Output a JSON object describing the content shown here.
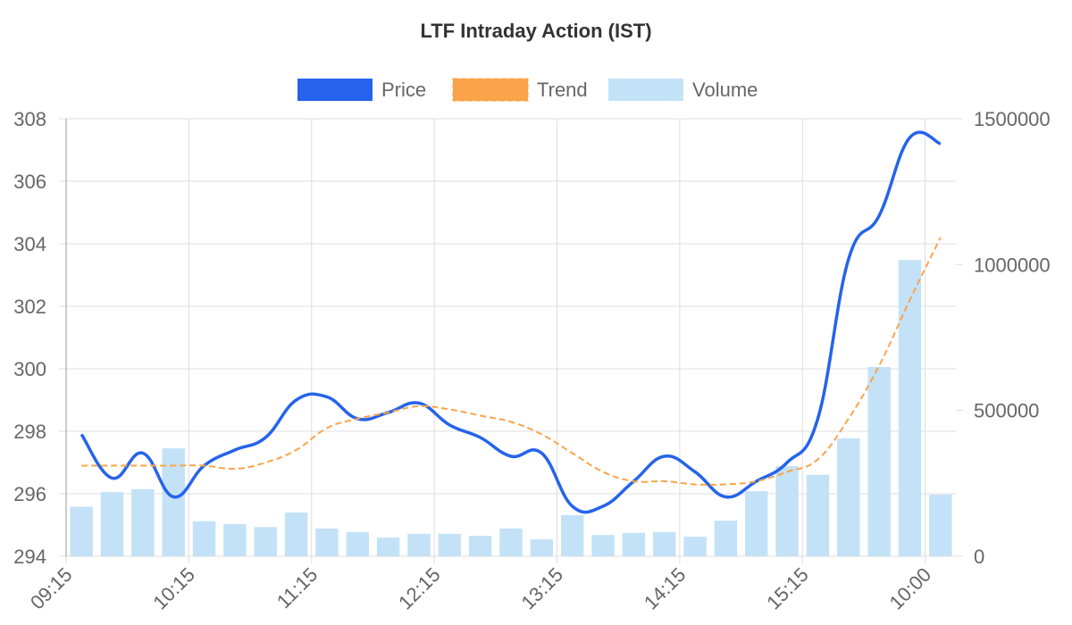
{
  "chart_data": {
    "type": "combo",
    "title": "LTF Intraday Action (IST)",
    "categories": [
      "09:15",
      null,
      null,
      null,
      "10:15",
      null,
      null,
      null,
      "11:15",
      null,
      null,
      null,
      "12:15",
      null,
      null,
      null,
      "13:15",
      null,
      null,
      null,
      "14:15",
      null,
      null,
      null,
      "15:15",
      null,
      null,
      null,
      "10:00"
    ],
    "series": [
      {
        "name": "Price",
        "type": "line",
        "color": "#2563eb",
        "axis": "y",
        "values": [
          297.9,
          296.5,
          297.3,
          295.9,
          296.9,
          297.4,
          297.8,
          299.0,
          299.1,
          298.4,
          298.6,
          298.9,
          298.2,
          297.8,
          297.2,
          297.3,
          295.6,
          295.6,
          296.4,
          297.2,
          296.7,
          295.9,
          296.4,
          297.0,
          298.4,
          303.5,
          304.9,
          307.4,
          307.2
        ]
      },
      {
        "name": "Trend",
        "type": "line",
        "dashed": true,
        "color": "#fba34a",
        "axis": "y",
        "values": [
          296.9,
          296.9,
          296.9,
          296.9,
          296.9,
          296.8,
          297.0,
          297.4,
          298.1,
          298.4,
          298.6,
          298.8,
          298.7,
          298.5,
          298.3,
          297.9,
          297.3,
          296.7,
          296.4,
          296.4,
          296.3,
          296.3,
          296.4,
          296.7,
          297.1,
          298.4,
          300.1,
          302.2,
          304.2
        ]
      },
      {
        "name": "Volume",
        "type": "bar",
        "color": "#c3e2f7",
        "axis": "y2",
        "values": [
          170000,
          220000,
          230000,
          370000,
          120000,
          110000,
          100000,
          150000,
          95000,
          83000,
          64000,
          77000,
          77000,
          70000,
          95000,
          58000,
          141000,
          73000,
          80000,
          83000,
          67000,
          122000,
          223000,
          309000,
          279000,
          404000,
          649000,
          1016000,
          211000
        ]
      }
    ],
    "ylim": [
      294,
      308
    ],
    "yticks": [
      294,
      296,
      298,
      300,
      302,
      304,
      306,
      308
    ],
    "y2lim": [
      0,
      1500000
    ],
    "y2ticks": [
      0,
      500000,
      1000000,
      1500000
    ],
    "grid": true,
    "legend": "top"
  }
}
